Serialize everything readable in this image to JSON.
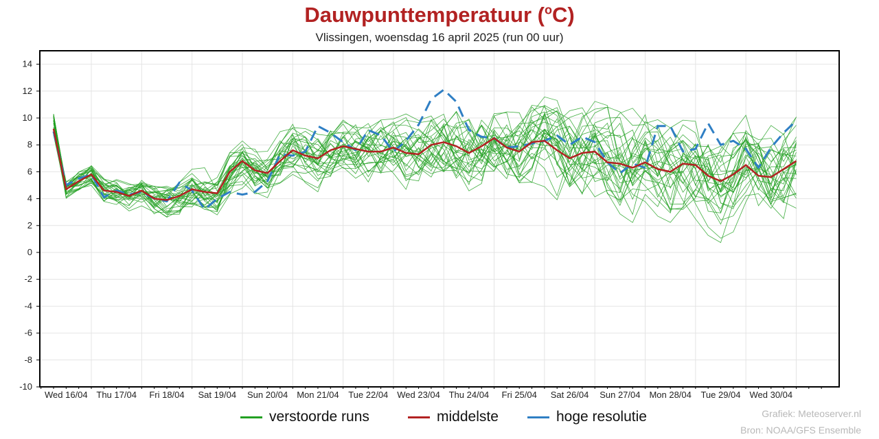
{
  "title_main": "Dauwpunttemperatuur (",
  "title_sup": "o",
  "title_end": "C)",
  "subtitle": "Vlissingen, woensdag 16 april 2025 (run 00 uur)",
  "legend": [
    {
      "label": "verstoorde runs",
      "color": "#22a022"
    },
    {
      "label": "middelste",
      "color": "#b22222"
    },
    {
      "label": "hoge resolutie",
      "color": "#2f7fc4"
    }
  ],
  "credits": [
    "Grafiek: Meteoserver.nl",
    "Bron: NOAA/GFS Ensemble"
  ],
  "chart_data": {
    "type": "line",
    "x_unit": "forecast step (6 h, starting 16/04 00 uur)",
    "ylim": [
      -10,
      15
    ],
    "y_ticks": [
      -10,
      -8,
      -6,
      -4,
      -2,
      0,
      2,
      4,
      6,
      8,
      10,
      12,
      14
    ],
    "x_tick_labels": [
      "Wed 16/04",
      "Thu 17/04",
      "Fri 18/04",
      "Sat 19/04",
      "Sun 20/04",
      "Mon 21/04",
      "Tue 22/04",
      "Wed 23/04",
      "Thu 24/04",
      "Fri 25/04",
      "Sat 26/04",
      "Sun 27/04",
      "Mon 28/04",
      "Tue 29/04",
      "Wed 30/04"
    ],
    "grid": true,
    "series": [
      {
        "name": "middelste",
        "color": "#b22222",
        "values": [
          9.2,
          4.7,
          5.3,
          5.8,
          4.6,
          4.5,
          4.2,
          4.6,
          4.0,
          3.9,
          4.2,
          4.7,
          4.5,
          4.4,
          6.0,
          6.8,
          6.1,
          5.9,
          6.8,
          7.6,
          7.2,
          7.0,
          7.6,
          7.9,
          7.7,
          7.5,
          7.5,
          7.8,
          7.4,
          7.3,
          8.0,
          8.2,
          7.9,
          7.4,
          7.9,
          8.5,
          7.8,
          7.5,
          8.2,
          8.3,
          7.6,
          7.0,
          7.4,
          7.5,
          6.7,
          6.6,
          6.3,
          6.7,
          6.2,
          6.0,
          6.6,
          6.5,
          5.7,
          5.3,
          5.8,
          6.5,
          5.7,
          5.6,
          6.2,
          6.8
        ]
      },
      {
        "name": "hoge resolutie",
        "color": "#2f7fc4",
        "dashed": true,
        "values": [
          9.0,
          5.0,
          5.5,
          5.8,
          4.1,
          4.6,
          4.3,
          4.5,
          4.0,
          3.8,
          5.2,
          4.6,
          3.2,
          4.0,
          4.5,
          4.3,
          4.5,
          5.3,
          7.3,
          7.2,
          7.5,
          9.4,
          8.9,
          8.2,
          7.6,
          9.1,
          8.7,
          7.5,
          8.3,
          9.5,
          11.4,
          12.1,
          11.2,
          9.1,
          8.6,
          8.5,
          7.8,
          7.9,
          8.1,
          8.3,
          8.7,
          8.0,
          8.6,
          8.2,
          6.7,
          5.9,
          6.6,
          6.3,
          9.4,
          9.4,
          7.5,
          7.7,
          9.6,
          8.0,
          8.3,
          7.7,
          6.3,
          7.8,
          8.9,
          9.8
        ]
      }
    ],
    "ensemble": {
      "name": "verstoorde runs",
      "color": "#22a022",
      "members": 30
    }
  }
}
